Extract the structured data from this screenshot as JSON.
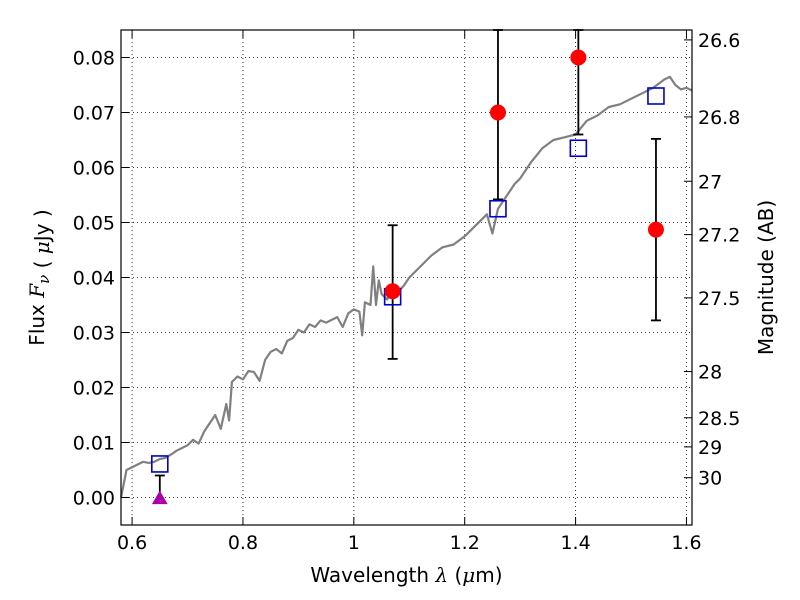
{
  "chart_data": {
    "type": "scatter",
    "xlabel": "Wavelength  λ (μm)",
    "ylabel": "Flux  Fν  ( μJy )",
    "ylabel_right": "Magnitude (AB)",
    "xlim": [
      0.58,
      1.61
    ],
    "ylim": [
      -0.005,
      0.085
    ],
    "grid": true,
    "x_ticks": [
      {
        "value": 0.6,
        "label": "0.6"
      },
      {
        "value": 0.8,
        "label": "0.8"
      },
      {
        "value": 1.0,
        "label": "1"
      },
      {
        "value": 1.2,
        "label": "1.2"
      },
      {
        "value": 1.4,
        "label": "1.4"
      },
      {
        "value": 1.6,
        "label": "1.6"
      }
    ],
    "y_ticks": [
      {
        "value": 0.0,
        "label": "0.00"
      },
      {
        "value": 0.01,
        "label": "0.01"
      },
      {
        "value": 0.02,
        "label": "0.02"
      },
      {
        "value": 0.03,
        "label": "0.03"
      },
      {
        "value": 0.04,
        "label": "0.04"
      },
      {
        "value": 0.05,
        "label": "0.05"
      },
      {
        "value": 0.06,
        "label": "0.06"
      },
      {
        "value": 0.07,
        "label": "0.07"
      },
      {
        "value": 0.08,
        "label": "0.08"
      }
    ],
    "right_ticks": [
      {
        "flux": 0.0832,
        "label": "26.6"
      },
      {
        "flux": 0.0692,
        "label": "26.8"
      },
      {
        "flux": 0.0575,
        "label": "27"
      },
      {
        "flux": 0.0478,
        "label": "27.2"
      },
      {
        "flux": 0.0363,
        "label": "27.5"
      },
      {
        "flux": 0.0229,
        "label": "28"
      },
      {
        "flux": 0.0145,
        "label": "28.5"
      },
      {
        "flux": 0.0092,
        "label": "29"
      },
      {
        "flux": 0.0036,
        "label": "30"
      }
    ],
    "series": [
      {
        "kind": "model_spectrum",
        "color": "#808080",
        "x": [
          0.58,
          0.59,
          0.6,
          0.61,
          0.62,
          0.63,
          0.64,
          0.65,
          0.66,
          0.67,
          0.68,
          0.69,
          0.7,
          0.71,
          0.72,
          0.73,
          0.74,
          0.75,
          0.76,
          0.77,
          0.775,
          0.78,
          0.79,
          0.8,
          0.81,
          0.82,
          0.83,
          0.84,
          0.85,
          0.86,
          0.87,
          0.88,
          0.89,
          0.9,
          0.91,
          0.92,
          0.93,
          0.94,
          0.95,
          0.96,
          0.97,
          0.98,
          0.99,
          1.0,
          1.01,
          1.015,
          1.02,
          1.03,
          1.035,
          1.04,
          1.045,
          1.05,
          1.06,
          1.07,
          1.08,
          1.09,
          1.1,
          1.12,
          1.14,
          1.16,
          1.18,
          1.2,
          1.22,
          1.24,
          1.25,
          1.26,
          1.27,
          1.28,
          1.29,
          1.3,
          1.32,
          1.34,
          1.36,
          1.38,
          1.4,
          1.42,
          1.44,
          1.46,
          1.48,
          1.5,
          1.52,
          1.54,
          1.56,
          1.57,
          1.58,
          1.59,
          1.6,
          1.61
        ],
        "y": [
          0.0,
          0.005,
          0.0055,
          0.006,
          0.0065,
          0.0063,
          0.0065,
          0.007,
          0.0072,
          0.0078,
          0.0085,
          0.009,
          0.0095,
          0.0105,
          0.0098,
          0.012,
          0.0135,
          0.015,
          0.0125,
          0.017,
          0.014,
          0.021,
          0.022,
          0.0215,
          0.023,
          0.0228,
          0.0212,
          0.025,
          0.0265,
          0.027,
          0.0262,
          0.0285,
          0.029,
          0.0305,
          0.03,
          0.0315,
          0.031,
          0.0322,
          0.0318,
          0.0323,
          0.0328,
          0.031,
          0.0335,
          0.0342,
          0.0338,
          0.0295,
          0.0355,
          0.035,
          0.042,
          0.035,
          0.0395,
          0.037,
          0.036,
          0.038,
          0.0375,
          0.0385,
          0.04,
          0.042,
          0.044,
          0.0455,
          0.046,
          0.0475,
          0.0495,
          0.0515,
          0.048,
          0.0525,
          0.054,
          0.0555,
          0.057,
          0.058,
          0.061,
          0.0635,
          0.065,
          0.0655,
          0.066,
          0.0685,
          0.0695,
          0.071,
          0.0715,
          0.0725,
          0.0735,
          0.0745,
          0.076,
          0.0765,
          0.075,
          0.0742,
          0.0745,
          0.074
        ]
      },
      {
        "kind": "model_photometry",
        "marker": "open-square",
        "color": "#0000cc",
        "x": [
          0.65,
          1.07,
          1.26,
          1.405,
          1.545
        ],
        "y": [
          0.0061,
          0.0365,
          0.0525,
          0.0635,
          0.073
        ]
      },
      {
        "kind": "observed",
        "marker": "filled-circle",
        "color": "#ff0000",
        "x": [
          1.07,
          1.26,
          1.405,
          1.545
        ],
        "y": [
          0.0375,
          0.07,
          0.08,
          0.0487
        ],
        "yerr_low": [
          0.0252,
          0.0542,
          0.066,
          0.0322
        ],
        "yerr_high": [
          0.0495,
          0.085,
          0.085,
          0.0652
        ]
      },
      {
        "kind": "upper_limit",
        "marker": "triangle",
        "color": "#aa00aa",
        "x": [
          0.65
        ],
        "y": [
          -0.0002
        ],
        "yerr_low": [
          -0.0002
        ],
        "yerr_high": [
          0.004
        ]
      }
    ]
  }
}
